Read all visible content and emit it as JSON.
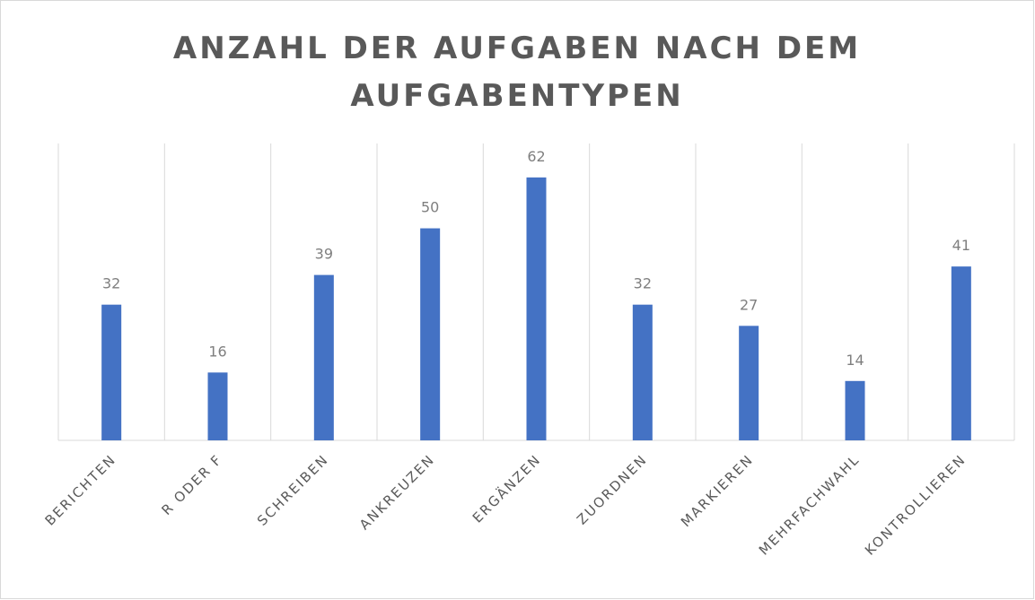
{
  "chart_data": {
    "type": "bar",
    "title": "ANZAHL DER AUFGABEN NACH DEM AUFGABENTYPEN",
    "categories": [
      "BERICHTEN",
      "R ODER F",
      "SCHREIBEN",
      "ANKREUZEN",
      "ERGÄNZEN",
      "ZUORDNEN",
      "MARKIEREN",
      "MEHRFACHWAHL",
      "KONTROLLIEREN"
    ],
    "values": [
      32,
      16,
      39,
      50,
      62,
      32,
      27,
      14,
      41
    ],
    "color": "#4472c4",
    "ylim": [
      0,
      70
    ]
  }
}
